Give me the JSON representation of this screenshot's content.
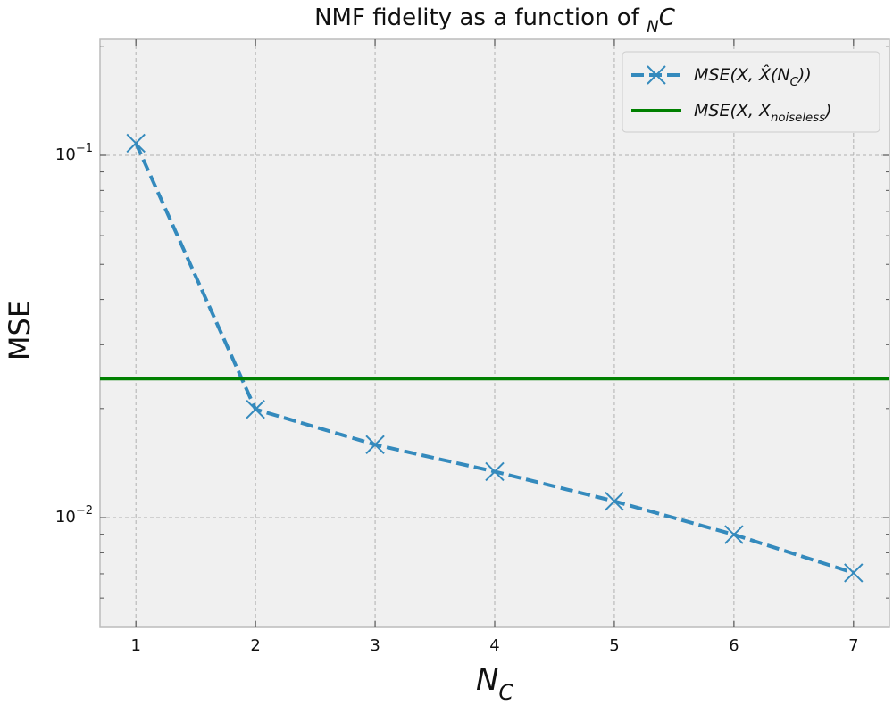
{
  "chart_data": {
    "type": "line",
    "title": [
      "NMF fidelity as a function of ",
      "N",
      "C"
    ],
    "xlabel": [
      "N",
      "C"
    ],
    "ylabel": "MSE",
    "x": [
      1,
      2,
      3,
      4,
      5,
      6,
      7
    ],
    "series": [
      {
        "name": [
          "MSE(X, X̂(N",
          "C",
          "))"
        ],
        "color": "#348abd",
        "linestyle": "dashed",
        "marker": "x",
        "values": [
          0.108,
          0.0199,
          0.0159,
          0.0134,
          0.0111,
          0.00898,
          0.00704
        ]
      },
      {
        "name": [
          "MSE(X, X",
          "noiseless",
          ")"
        ],
        "color": "#008000",
        "linestyle": "solid",
        "hline": 0.0242
      }
    ],
    "xlim": [
      0.7,
      7.3
    ],
    "xticks": [
      1,
      2,
      3,
      4,
      5,
      6,
      7
    ],
    "ylim": [
      0.00498,
      0.209
    ],
    "yscale": "log",
    "yticks": [
      {
        "value": 0.01,
        "label": "10",
        "exponent": "−2"
      },
      {
        "value": 0.1,
        "label": "10",
        "exponent": "−1"
      }
    ],
    "yminorticks": [
      0.006,
      0.007,
      0.008,
      0.009,
      0.02,
      0.03,
      0.04,
      0.05,
      0.06,
      0.07,
      0.08,
      0.09,
      0.2
    ],
    "grid": true,
    "legend": "upper right"
  }
}
